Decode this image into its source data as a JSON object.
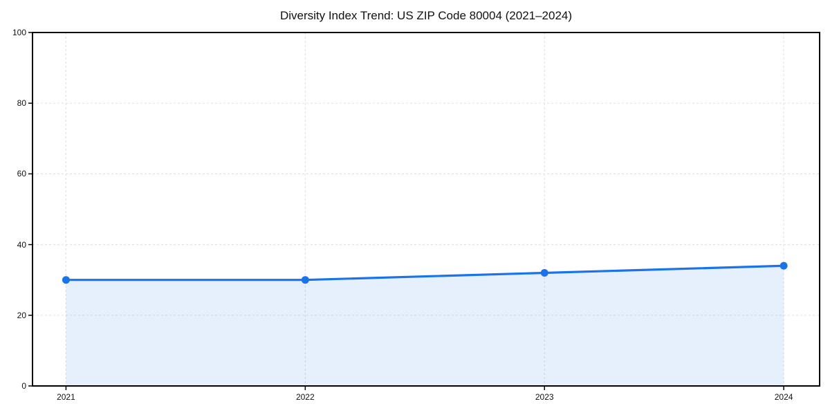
{
  "figure": {
    "background": "#ffffff"
  },
  "chart_data": {
    "type": "area",
    "title": "Diversity Index Trend: US ZIP Code 80004 (2021–2024)",
    "x": [
      2021,
      2022,
      2023,
      2024
    ],
    "xtick_labels": [
      "2021",
      "2022",
      "2023",
      "2024"
    ],
    "values": [
      30,
      30,
      32,
      34
    ],
    "xlabel": "",
    "ylabel": "",
    "ylim": [
      0,
      100
    ],
    "xlim": [
      2020.86,
      2024.15
    ],
    "yticks": [
      0,
      20,
      40,
      60,
      80,
      100
    ],
    "grid": "dashed-both-axes",
    "legend": "none",
    "marker": "circle",
    "colors": {
      "line": "#1a73e8",
      "marker": "#1a73e8",
      "fill": "rgba(26,115,232,0.11)",
      "grid": "#e3e3e3",
      "spine": "#000000",
      "tick": "#000000",
      "text": "#111111"
    }
  }
}
